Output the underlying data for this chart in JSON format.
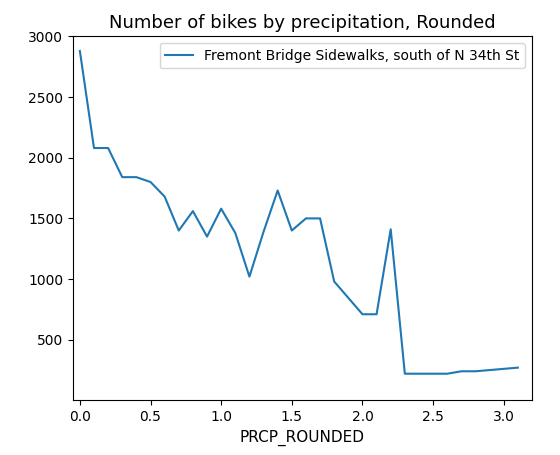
{
  "title": "Number of bikes by precipitation, Rounded",
  "xlabel": "PRCP_ROUNDED",
  "ylabel": "",
  "legend_label": "Fremont Bridge Sidewalks, south of N 34th St",
  "line_color": "#1f77b4",
  "x": [
    0.0,
    0.1,
    0.2,
    0.3,
    0.4,
    0.5,
    0.6,
    0.7,
    0.8,
    0.9,
    1.0,
    1.1,
    1.2,
    1.3,
    1.4,
    1.5,
    1.6,
    1.7,
    1.8,
    2.0,
    2.1,
    2.2,
    2.3,
    2.6,
    2.7,
    2.8,
    3.1
  ],
  "y": [
    2880,
    2080,
    2080,
    1840,
    1840,
    1800,
    1680,
    1400,
    1560,
    1350,
    1580,
    1380,
    1020,
    1390,
    1730,
    1400,
    1500,
    1500,
    980,
    710,
    710,
    1410,
    220,
    220,
    240,
    240,
    270
  ],
  "xlim": [
    -0.05,
    3.2
  ],
  "ylim_bottom": 0,
  "ylim_top": 3000,
  "yticks": [
    500,
    1000,
    1500,
    2000,
    2500,
    3000
  ],
  "xticks": [
    0.0,
    0.5,
    1.0,
    1.5,
    2.0,
    2.5,
    3.0
  ],
  "figsize": [
    5.6,
    4.55
  ],
  "dpi": 100,
  "title_fontsize": 13,
  "label_fontsize": 11,
  "legend_fontsize": 10,
  "linewidth": 1.5
}
